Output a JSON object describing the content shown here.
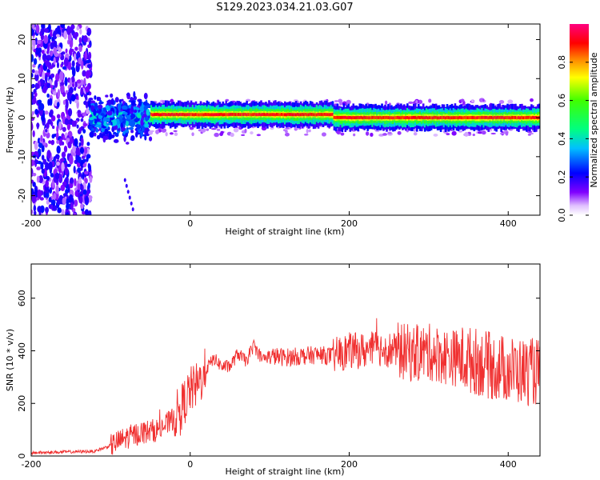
{
  "title": "S129.2023.034.21.03.G07",
  "chart_data": [
    {
      "type": "heatmap",
      "xlabel": "Height of straight line (km)",
      "ylabel": "Frequency (Hz)",
      "xlim": [
        -200,
        440
      ],
      "ylim": [
        -25,
        24
      ],
      "x_ticks": [
        -200,
        0,
        200,
        400
      ],
      "y_ticks": [
        -20,
        -10,
        0,
        10,
        20
      ],
      "colorbar": {
        "label": "Normalized spectral amplitude",
        "range": [
          0.0,
          1.0
        ],
        "ticks": [
          "0.0",
          "0.2",
          "0.4",
          "0.6",
          "0.8"
        ],
        "tick_values": [
          0.0,
          0.2,
          0.4,
          0.6,
          0.8
        ]
      },
      "features": [
        {
          "x_range": [
            -200,
            -125
          ],
          "freq_range": [
            -25,
            24
          ],
          "amplitude": 0.15
        },
        {
          "x_range": [
            -125,
            -50
          ],
          "freq_range": [
            -10,
            7
          ],
          "amplitude": 0.3
        },
        {
          "x_range": [
            -50,
            180
          ],
          "freq_center": 0.8,
          "amplitude": 0.85
        },
        {
          "x_range": [
            180,
            440
          ],
          "freq_center": 0.0,
          "amplitude": 0.9
        }
      ]
    },
    {
      "type": "line",
      "xlabel": "Height of straight line (km)",
      "ylabel": "SNR (10 * v/v)",
      "xlim": [
        -200,
        440
      ],
      "ylim": [
        0,
        730
      ],
      "x_ticks": [
        -200,
        0,
        200,
        400
      ],
      "y_ticks": [
        0,
        200,
        400,
        600
      ],
      "color": "#f03030",
      "series": [
        {
          "x": [
            -200,
            -160,
            -120,
            -100,
            -80,
            -60,
            -40,
            -25,
            -10,
            0,
            10,
            20,
            30,
            40,
            50,
            60,
            70,
            80,
            90,
            100,
            120,
            140,
            160,
            180,
            200,
            220,
            240,
            260,
            280,
            300,
            320,
            340,
            360,
            380,
            400,
            420,
            440
          ],
          "values": [
            12,
            15,
            18,
            40,
            70,
            90,
            100,
            130,
            190,
            250,
            270,
            330,
            370,
            340,
            340,
            390,
            360,
            420,
            370,
            380,
            375,
            380,
            385,
            380,
            400,
            400,
            410,
            400,
            390,
            395,
            380,
            370,
            360,
            340,
            330,
            320,
            320
          ]
        }
      ]
    }
  ]
}
